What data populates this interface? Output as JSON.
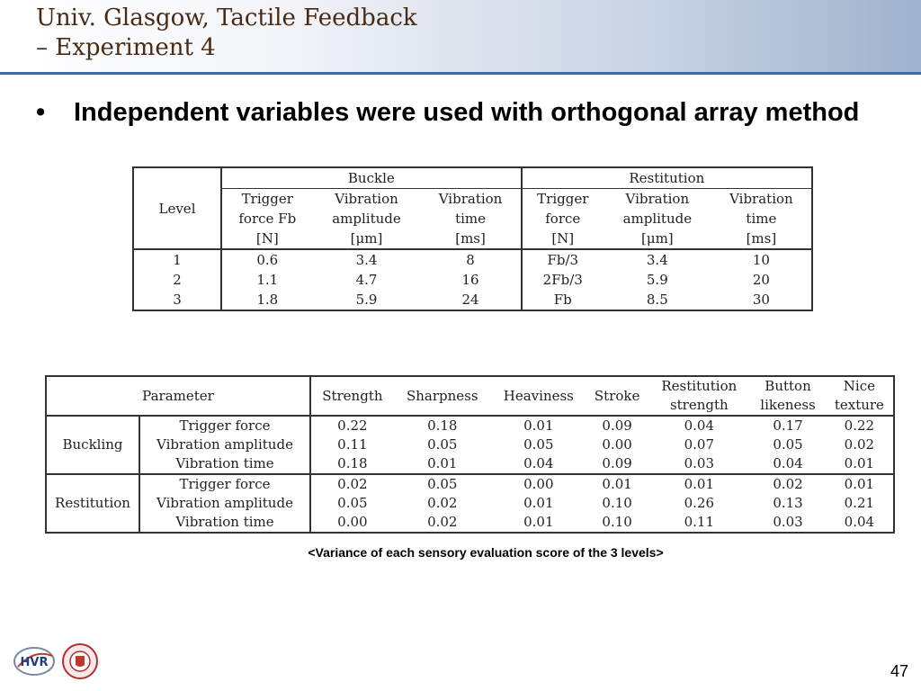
{
  "slide": {
    "title_line1": "Univ. Glasgow, Tactile Feedback",
    "title_line2": "– Experiment 4",
    "bullet_symbol": "•",
    "bullet_text": "Independent variables were used with orthogonal array method",
    "caption": "<Variance of each sensory evaluation score of the 3 levels>",
    "page_number": "47",
    "logo": {
      "text": "HVR",
      "icon": "hvr-lab-logo",
      "seal_icon": "university-seal-icon"
    }
  },
  "table1": {
    "level_header": "Level",
    "group_headers": [
      "Buckle",
      "Restitution"
    ],
    "columns": [
      {
        "name": "Trigger",
        "sub": "force Fb",
        "unit": "[N]"
      },
      {
        "name": "Vibration",
        "sub": "amplitude",
        "unit": "[μm]"
      },
      {
        "name": "Vibration",
        "sub": "time",
        "unit": "[ms]"
      },
      {
        "name": "Trigger",
        "sub": "force",
        "unit": "[N]"
      },
      {
        "name": "Vibration",
        "sub": "amplitude",
        "unit": "[μm]"
      },
      {
        "name": "Vibration",
        "sub": "time",
        "unit": "[ms]"
      }
    ],
    "rows": [
      {
        "level": "1",
        "values": [
          "0.6",
          "3.4",
          "8",
          "Fb/3",
          "3.4",
          "10"
        ]
      },
      {
        "level": "2",
        "values": [
          "1.1",
          "4.7",
          "16",
          "2Fb/3",
          "5.9",
          "20"
        ]
      },
      {
        "level": "3",
        "values": [
          "1.8",
          "5.9",
          "24",
          "Fb",
          "8.5",
          "30"
        ]
      }
    ]
  },
  "table2": {
    "parameter_header": "Parameter",
    "columns": [
      {
        "line1": "Strength"
      },
      {
        "line1": "Sharpness"
      },
      {
        "line1": "Heaviness"
      },
      {
        "line1": "Stroke"
      },
      {
        "line1": "Restitution",
        "line2": "strength"
      },
      {
        "line1": "Button",
        "line2": "likeness"
      },
      {
        "line1": "Nice",
        "line2": "texture"
      }
    ],
    "groups": [
      {
        "name": "Buckling",
        "rows": [
          {
            "param": "Trigger force",
            "values": [
              "0.22",
              "0.18",
              "0.01",
              "0.09",
              "0.04",
              "0.17",
              "0.22"
            ]
          },
          {
            "param": "Vibration amplitude",
            "values": [
              "0.11",
              "0.05",
              "0.05",
              "0.00",
              "0.07",
              "0.05",
              "0.02"
            ]
          },
          {
            "param": "Vibration time",
            "values": [
              "0.18",
              "0.01",
              "0.04",
              "0.09",
              "0.03",
              "0.04",
              "0.01"
            ]
          }
        ]
      },
      {
        "name": "Restitution",
        "rows": [
          {
            "param": "Trigger force",
            "values": [
              "0.02",
              "0.05",
              "0.00",
              "0.01",
              "0.01",
              "0.02",
              "0.01"
            ]
          },
          {
            "param": "Vibration amplitude",
            "values": [
              "0.05",
              "0.02",
              "0.01",
              "0.10",
              "0.26",
              "0.13",
              "0.21"
            ]
          },
          {
            "param": "Vibration time",
            "values": [
              "0.00",
              "0.02",
              "0.01",
              "0.10",
              "0.11",
              "0.03",
              "0.04"
            ]
          }
        ]
      }
    ]
  },
  "colors": {
    "title_text": "#4a2a14",
    "title_rule": "#3f6aa3"
  }
}
